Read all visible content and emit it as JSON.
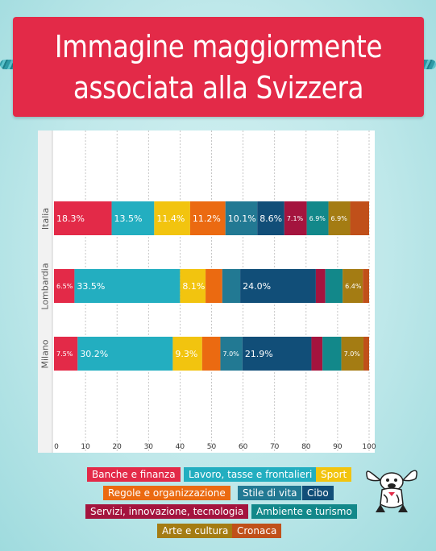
{
  "title": {
    "line1": "Immagine maggiormente",
    "line2": "associata alla Svizzera"
  },
  "colors": {
    "banner": "#e32a48",
    "background": "#c4eaec"
  },
  "chart_data": {
    "type": "bar",
    "orientation": "horizontal",
    "stacked": true,
    "categories": [
      "Italia",
      "Lombardia",
      "Milano"
    ],
    "xlim": [
      0,
      100
    ],
    "xticks": [
      0,
      10,
      20,
      30,
      40,
      50,
      60,
      70,
      80,
      90,
      100
    ],
    "grid": "vertical dashed",
    "legend_position": "bottom",
    "series": [
      {
        "name": "Banche e finanza",
        "color": "#e32a48",
        "values": [
          18.3,
          6.5,
          7.5
        ],
        "labels": [
          "18.3%",
          "6.5%",
          "7.5%"
        ]
      },
      {
        "name": "Lavoro, tasse e frontalieri",
        "color": "#23aec0",
        "values": [
          13.5,
          33.5,
          30.2
        ],
        "labels": [
          "13.5%",
          "33.5%",
          "30.2%"
        ]
      },
      {
        "name": "Sport",
        "color": "#f2c40f",
        "values": [
          11.4,
          8.1,
          9.3
        ],
        "labels": [
          "11.4%",
          "8.1%",
          "9.3%"
        ]
      },
      {
        "name": "Regole e organizzazione",
        "color": "#eb6a11",
        "values": [
          11.2,
          5.3,
          5.8
        ],
        "labels": [
          "11.2%",
          "",
          ""
        ]
      },
      {
        "name": "Stile di vita",
        "color": "#227993",
        "values": [
          10.1,
          5.7,
          7.0
        ],
        "labels": [
          "10.1%",
          "",
          "7.0%"
        ]
      },
      {
        "name": "Cibo",
        "color": "#114e78",
        "values": [
          8.6,
          24.0,
          21.9
        ],
        "labels": [
          "8.6%",
          "24.0%",
          "21.9%"
        ]
      },
      {
        "name": "Servizi, innovazione, tecnologia",
        "color": "#a4143e",
        "values": [
          7.1,
          3.0,
          3.5
        ],
        "labels": [
          "7.1%",
          "",
          ""
        ]
      },
      {
        "name": "Ambiente e turismo",
        "color": "#12888a",
        "values": [
          6.9,
          5.5,
          6.0
        ],
        "labels": [
          "6.9%",
          "",
          ""
        ]
      },
      {
        "name": "Arte e cultura",
        "color": "#a47c13",
        "values": [
          6.9,
          6.4,
          7.0
        ],
        "labels": [
          "6.9%",
          "6.4%",
          "7.0%"
        ]
      },
      {
        "name": "Cronaca",
        "color": "#c0501a",
        "values": [
          6.0,
          2.0,
          1.8
        ],
        "labels": [
          "",
          "",
          ""
        ]
      }
    ]
  }
}
